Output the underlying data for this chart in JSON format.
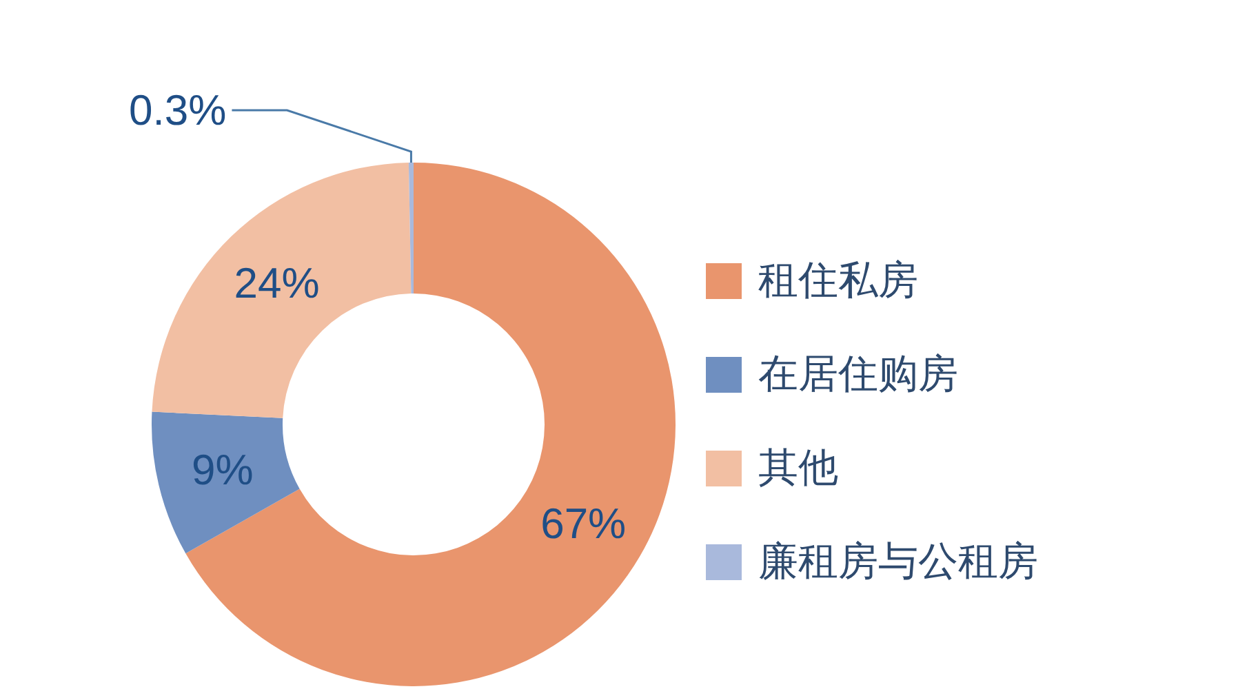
{
  "chart_data": {
    "type": "donut",
    "categories": [
      "租住私房",
      "在居住购房",
      "其他",
      "廉租房与公租房"
    ],
    "values": [
      67,
      9,
      24,
      0.3
    ],
    "colors": [
      "#e9956d",
      "#6f8fc0",
      "#f2bfa3",
      "#a9b9dc"
    ],
    "value_labels": [
      "67%",
      "9%",
      "24%",
      "0.3%"
    ],
    "legend": "right"
  }
}
